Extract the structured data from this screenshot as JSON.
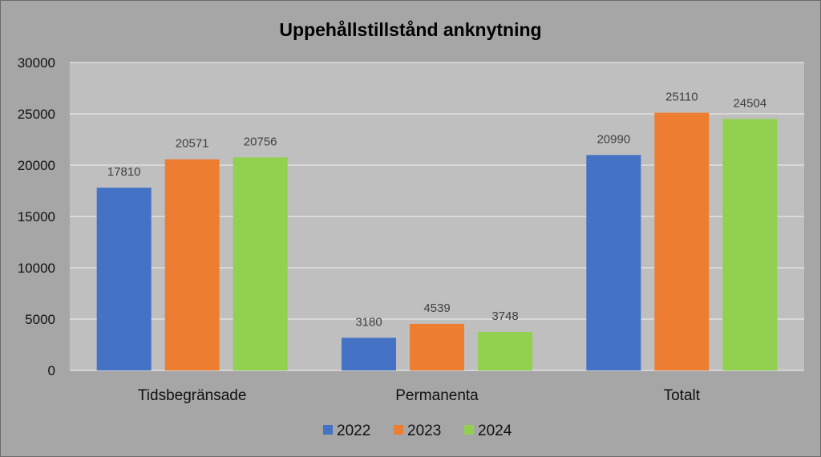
{
  "chart_data": {
    "type": "bar",
    "title": "Uppehållstillstånd anknytning",
    "xlabel": "",
    "ylabel": "",
    "categories": [
      "Tidsbegränsade",
      "Permanenta",
      "Totalt"
    ],
    "series": [
      {
        "name": "2022",
        "color": "#4472c4",
        "values": [
          17810,
          3180,
          20990
        ]
      },
      {
        "name": "2023",
        "color": "#ed7d31",
        "values": [
          20571,
          4539,
          25110
        ]
      },
      {
        "name": "2024",
        "color": "#92d050",
        "values": [
          20756,
          3748,
          24504
        ]
      }
    ],
    "ylim": [
      0,
      30000
    ],
    "yticks": [
      "0",
      "5000",
      "10000",
      "15000",
      "20000",
      "25000",
      "30000"
    ],
    "grid": true,
    "legend_position": "bottom",
    "plot_background": "#bfbfbf",
    "chart_background": "#a6a6a6",
    "data_labels": true
  }
}
